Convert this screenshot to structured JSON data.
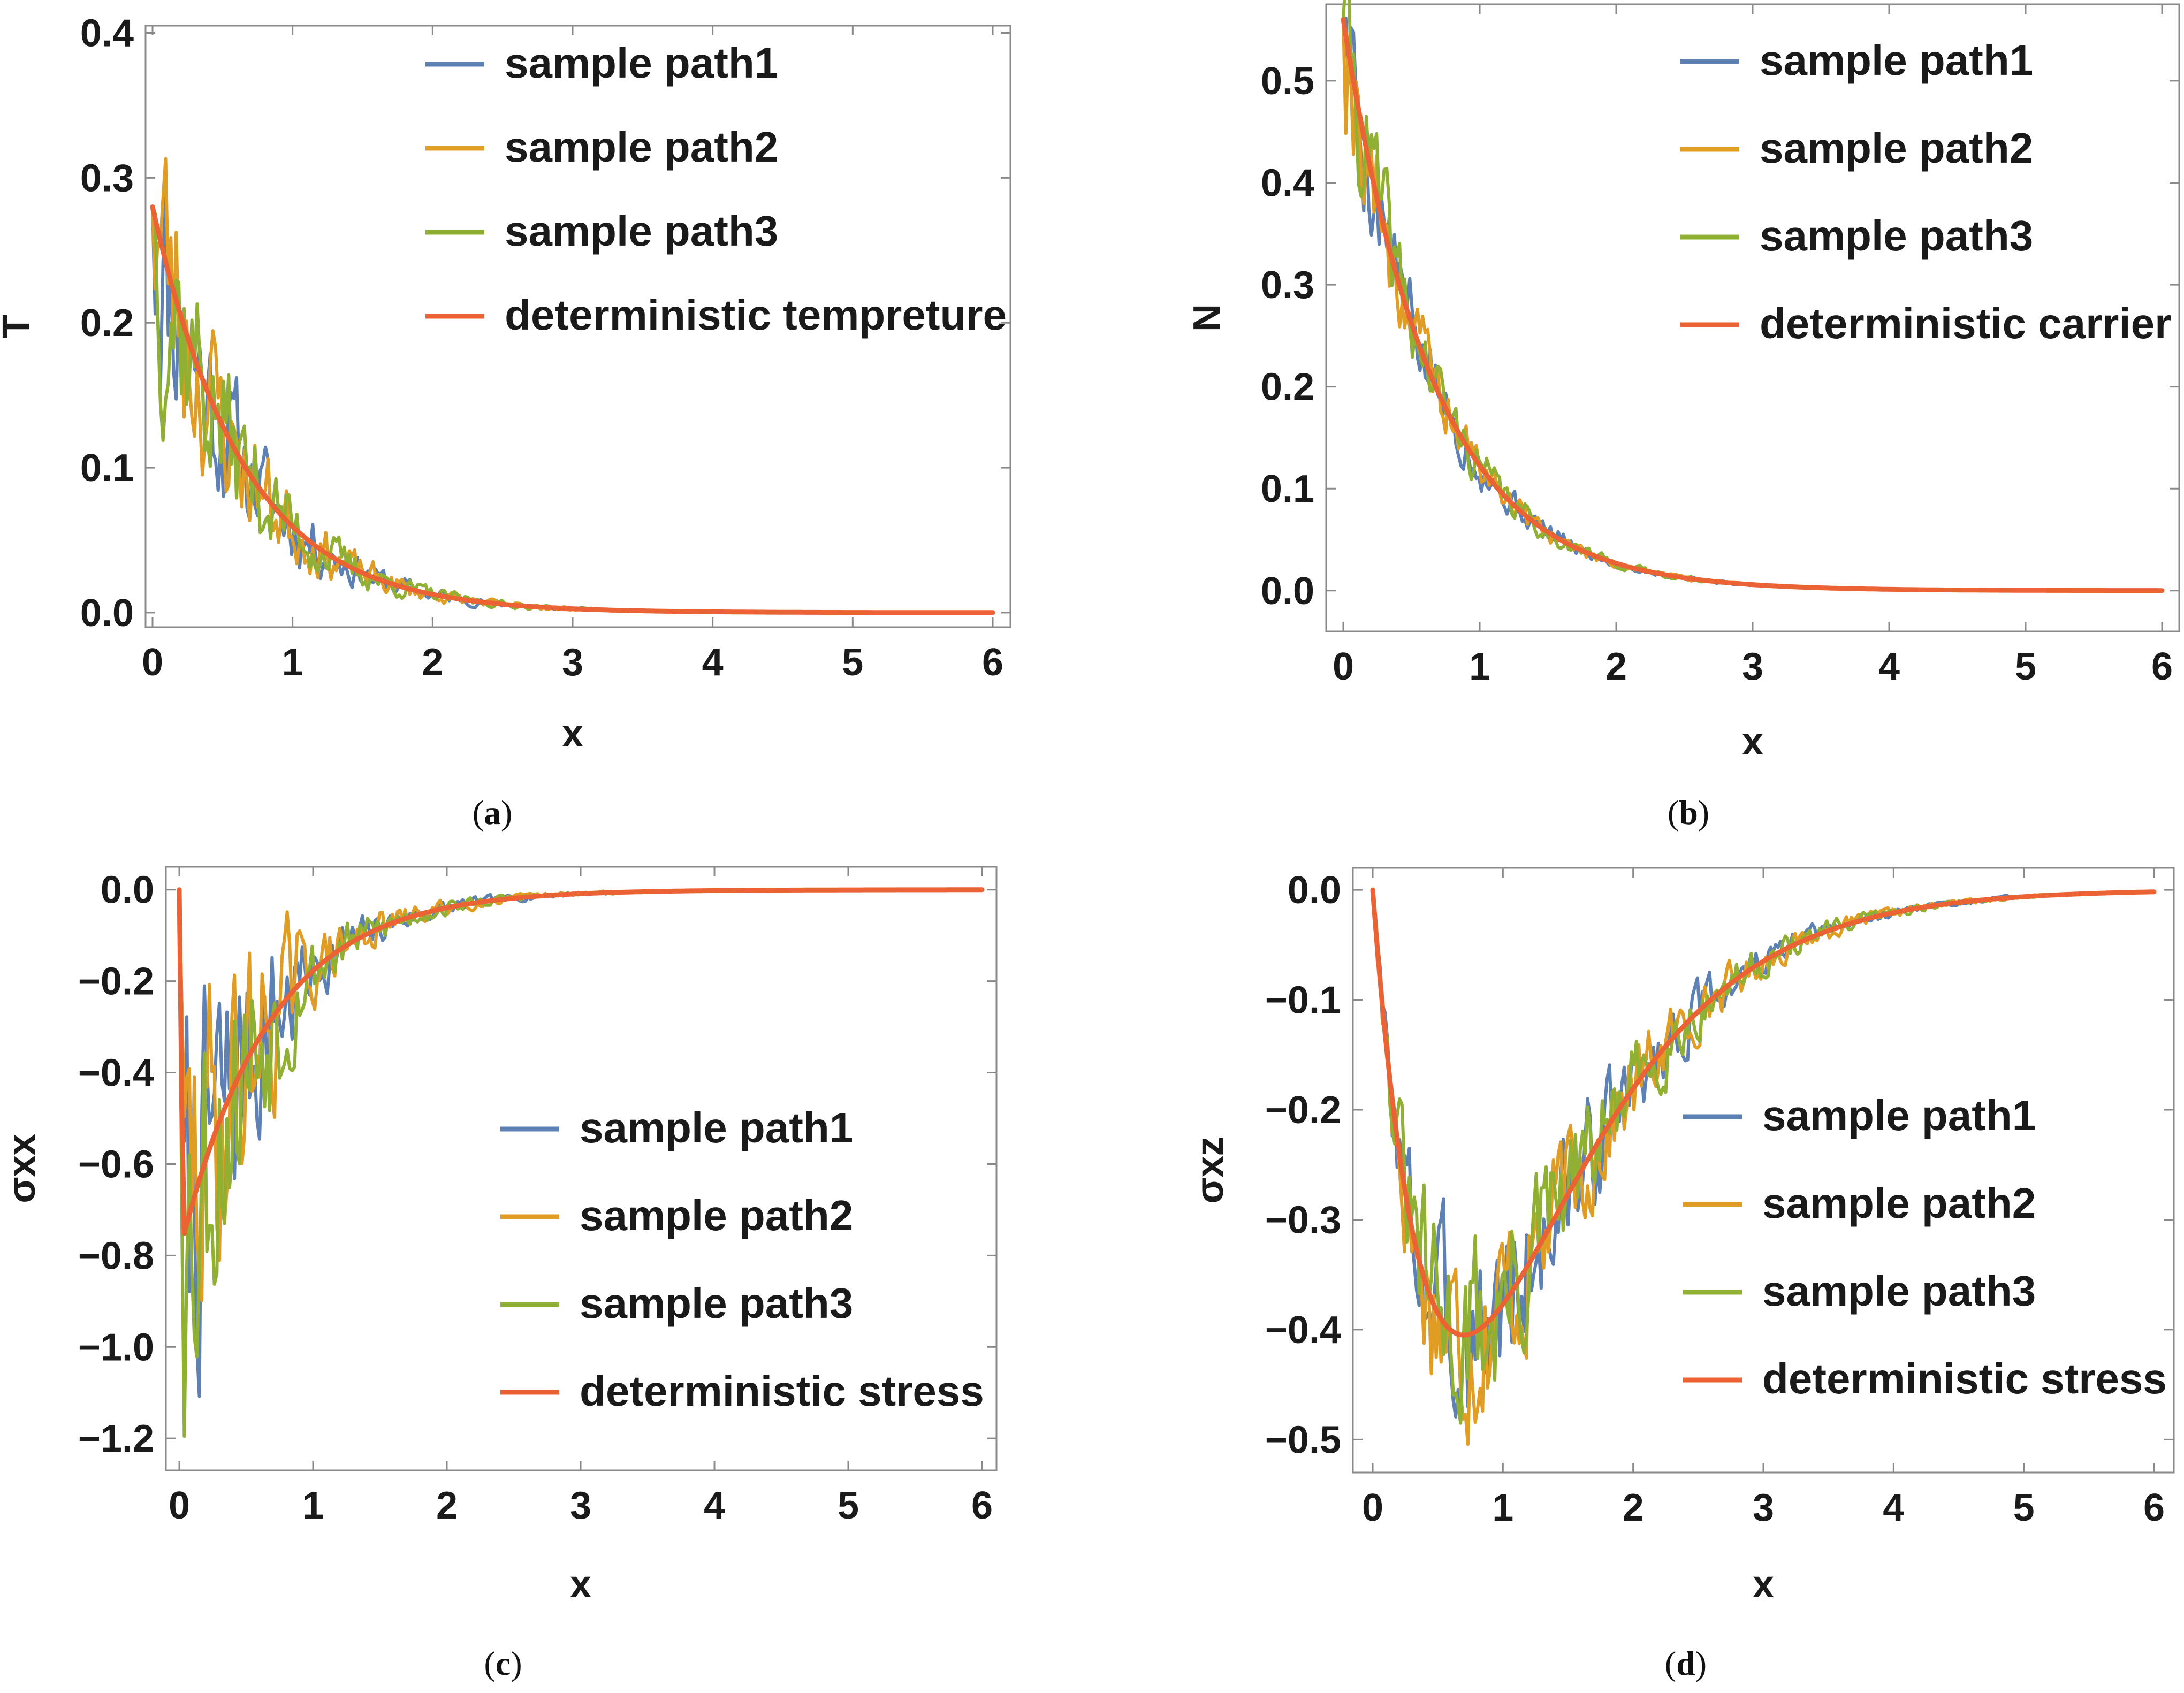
{
  "chart_data": [
    {
      "id": "a",
      "type": "line",
      "caption_letter": "a",
      "xlabel": "x",
      "ylabel": "T",
      "xlim": [
        0,
        6
      ],
      "ylim": [
        -0.01,
        0.405
      ],
      "x_ticks": [
        "0",
        "1",
        "2",
        "3",
        "4",
        "5",
        "6"
      ],
      "x_tick_values": [
        0,
        1,
        2,
        3,
        4,
        5,
        6
      ],
      "y_ticks": [
        "0.0",
        "0.1",
        "0.2",
        "0.3",
        "0.4"
      ],
      "y_tick_values": [
        0.0,
        0.1,
        0.2,
        0.3,
        0.4
      ],
      "legend_position": "top-right",
      "deterministic": {
        "kind": "exp",
        "a": 0.28,
        "k": 1.55,
        "peak": 0
      },
      "noise": {
        "scale": 0.32,
        "seeds": [
          11,
          23,
          37
        ]
      },
      "series": [
        {
          "name": "sample path1",
          "color": "#5e81b5"
        },
        {
          "name": "sample path2",
          "color": "#e19c24"
        },
        {
          "name": "sample path3",
          "color": "#8fb032"
        },
        {
          "name": "deterministic tempreture",
          "color": "#eb6235"
        }
      ]
    },
    {
      "id": "b",
      "type": "line",
      "caption_letter": "b",
      "xlabel": "x",
      "ylabel": "N",
      "xlim": [
        0,
        6
      ],
      "ylim": [
        -0.04,
        0.575
      ],
      "x_ticks": [
        "0",
        "1",
        "2",
        "3",
        "4",
        "5",
        "6"
      ],
      "x_tick_values": [
        0,
        1,
        2,
        3,
        4,
        5,
        6
      ],
      "y_ticks": [
        "0.0",
        "0.1",
        "0.2",
        "0.3",
        "0.4",
        "0.5"
      ],
      "y_tick_values": [
        0.0,
        0.1,
        0.2,
        0.3,
        0.4,
        0.5
      ],
      "legend_position": "top-right",
      "deterministic": {
        "kind": "exp",
        "a": 0.56,
        "k": 1.52,
        "peak": 0
      },
      "noise": {
        "scale": 0.13,
        "seeds": [
          5,
          19,
          41
        ]
      },
      "series": [
        {
          "name": "sample path1",
          "color": "#5e81b5"
        },
        {
          "name": "sample path2",
          "color": "#e19c24"
        },
        {
          "name": "sample path3",
          "color": "#8fb032"
        },
        {
          "name": "deterministic carrier",
          "color": "#eb6235"
        }
      ]
    },
    {
      "id": "c",
      "type": "line",
      "caption_letter": "c",
      "xlabel": "x",
      "ylabel": "σxx",
      "xlim": [
        0,
        6
      ],
      "ylim": [
        -1.27,
        0.05
      ],
      "x_ticks": [
        "0",
        "1",
        "2",
        "3",
        "4",
        "5",
        "6"
      ],
      "x_tick_values": [
        0,
        1,
        2,
        3,
        4,
        5,
        6
      ],
      "y_ticks": [
        "0.0",
        "−0.2",
        "−0.4",
        "−0.6",
        "−0.8",
        "−1.0",
        "−1.2"
      ],
      "y_tick_values": [
        0.0,
        -0.2,
        -0.4,
        -0.6,
        -0.8,
        -1.0,
        -1.2
      ],
      "legend_position": "bottom-right",
      "deterministic": {
        "kind": "drop",
        "a": -0.76,
        "k": 1.5,
        "peak": 0.03
      },
      "noise": {
        "scale": 0.33,
        "seeds": [
          7,
          29,
          53
        ]
      },
      "series": [
        {
          "name": "sample path1",
          "color": "#5e81b5"
        },
        {
          "name": "sample path2",
          "color": "#e19c24"
        },
        {
          "name": "sample path3",
          "color": "#8fb032"
        },
        {
          "name": "deterministic stress",
          "color": "#eb6235"
        }
      ]
    },
    {
      "id": "d",
      "type": "line",
      "caption_letter": "d",
      "xlabel": "x",
      "ylabel": "σxz",
      "xlim": [
        0,
        6
      ],
      "ylim": [
        -0.53,
        0.02
      ],
      "x_ticks": [
        "0",
        "1",
        "2",
        "3",
        "4",
        "5",
        "6"
      ],
      "x_tick_values": [
        0,
        1,
        2,
        3,
        4,
        5,
        6
      ],
      "y_ticks": [
        "0.0",
        "−0.1",
        "−0.2",
        "−0.3",
        "−0.4",
        "−0.5"
      ],
      "y_tick_values": [
        0.0,
        -0.1,
        -0.2,
        -0.3,
        -0.4,
        -0.5
      ],
      "legend_position": "right",
      "deterministic": {
        "kind": "well",
        "a": -0.405,
        "k": 1.43,
        "peak": 0.7
      },
      "noise": {
        "scale": 0.17,
        "seeds": [
          3,
          17,
          31
        ]
      },
      "series": [
        {
          "name": "sample path1",
          "color": "#5e81b5"
        },
        {
          "name": "sample path2",
          "color": "#e19c24"
        },
        {
          "name": "sample path3",
          "color": "#8fb032"
        },
        {
          "name": "deterministic stress",
          "color": "#eb6235"
        }
      ]
    }
  ]
}
